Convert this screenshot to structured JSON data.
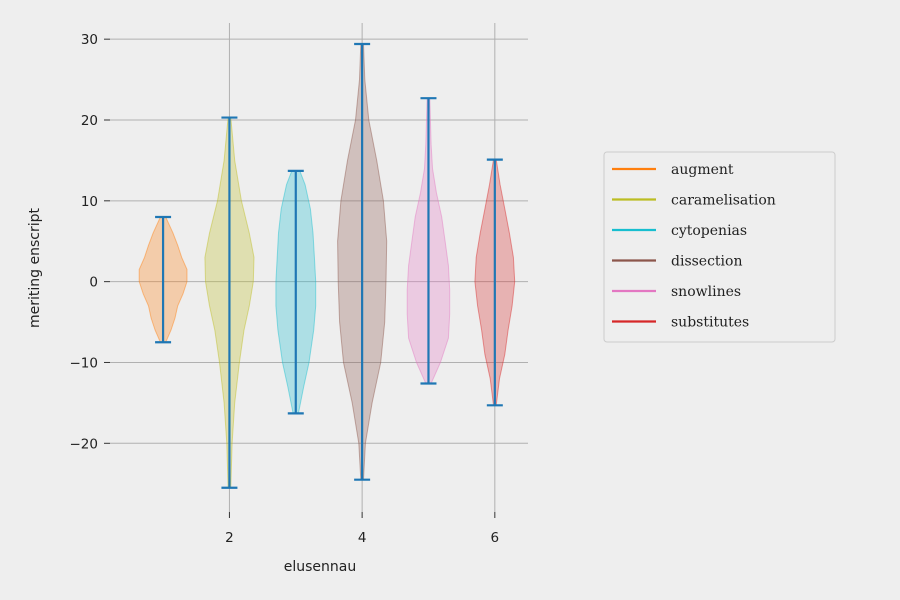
{
  "chart_data": {
    "type": "violin",
    "xlabel": "elusennau",
    "ylabel": "meriting enscript",
    "xlim": [
      0.2,
      6.5
    ],
    "ylim": [
      -28.5,
      32
    ],
    "x_ticks": [
      2,
      4,
      6
    ],
    "y_ticks": [
      -20,
      -10,
      0,
      10,
      20,
      30
    ],
    "grid": true,
    "legend_position": "right",
    "whisker_color": "#1f77b4",
    "series": [
      {
        "name": "augment",
        "color": "#ff7f0e",
        "position": 1,
        "min": -7.5,
        "max": 8.0,
        "density": [
          [
            -7.5,
            0.04
          ],
          [
            -6,
            0.12
          ],
          [
            -4.5,
            0.18
          ],
          [
            -3,
            0.22
          ],
          [
            -1.5,
            0.3
          ],
          [
            0,
            0.36
          ],
          [
            1.5,
            0.36
          ],
          [
            3,
            0.28
          ],
          [
            4.5,
            0.22
          ],
          [
            6,
            0.15
          ],
          [
            8,
            0.04
          ]
        ]
      },
      {
        "name": "caramelisation",
        "color": "#bcbd22",
        "position": 2,
        "min": -25.5,
        "max": 20.3,
        "density": [
          [
            -25.5,
            0.02
          ],
          [
            -20,
            0.04
          ],
          [
            -15,
            0.08
          ],
          [
            -10,
            0.15
          ],
          [
            -6,
            0.22
          ],
          [
            -3,
            0.3
          ],
          [
            0,
            0.36
          ],
          [
            3,
            0.37
          ],
          [
            6,
            0.3
          ],
          [
            10,
            0.18
          ],
          [
            15,
            0.08
          ],
          [
            20.3,
            0.02
          ]
        ]
      },
      {
        "name": "cytopenias",
        "color": "#17becf",
        "position": 3,
        "min": -16.3,
        "max": 13.7,
        "density": [
          [
            -16.3,
            0.04
          ],
          [
            -13,
            0.12
          ],
          [
            -10,
            0.2
          ],
          [
            -6,
            0.27
          ],
          [
            -3,
            0.3
          ],
          [
            0,
            0.3
          ],
          [
            3,
            0.28
          ],
          [
            6,
            0.26
          ],
          [
            9,
            0.22
          ],
          [
            12,
            0.14
          ],
          [
            13.7,
            0.06
          ]
        ]
      },
      {
        "name": "dissection",
        "color": "#8c564b",
        "position": 4,
        "min": -24.5,
        "max": 29.4,
        "density": [
          [
            -24.5,
            0.02
          ],
          [
            -20,
            0.05
          ],
          [
            -15,
            0.15
          ],
          [
            -10,
            0.28
          ],
          [
            -5,
            0.34
          ],
          [
            0,
            0.36
          ],
          [
            5,
            0.37
          ],
          [
            10,
            0.32
          ],
          [
            15,
            0.22
          ],
          [
            20,
            0.1
          ],
          [
            25,
            0.04
          ],
          [
            29.4,
            0.02
          ]
        ]
      },
      {
        "name": "snowlines",
        "color": "#e377c2",
        "position": 5,
        "min": -12.6,
        "max": 22.7,
        "density": [
          [
            -12.6,
            0.04
          ],
          [
            -10,
            0.18
          ],
          [
            -7,
            0.3
          ],
          [
            -4,
            0.32
          ],
          [
            -1,
            0.32
          ],
          [
            2,
            0.3
          ],
          [
            5,
            0.25
          ],
          [
            8,
            0.2
          ],
          [
            11,
            0.12
          ],
          [
            14,
            0.06
          ],
          [
            17,
            0.04
          ],
          [
            22.7,
            0.02
          ]
        ]
      },
      {
        "name": "substitutes",
        "color": "#d62728",
        "position": 6,
        "min": -15.3,
        "max": 15.1,
        "density": [
          [
            -15.3,
            0.02
          ],
          [
            -12,
            0.07
          ],
          [
            -9,
            0.15
          ],
          [
            -6,
            0.2
          ],
          [
            -3,
            0.26
          ],
          [
            0,
            0.3
          ],
          [
            3,
            0.28
          ],
          [
            6,
            0.22
          ],
          [
            9,
            0.15
          ],
          [
            12,
            0.08
          ],
          [
            15.1,
            0.02
          ]
        ]
      }
    ]
  }
}
